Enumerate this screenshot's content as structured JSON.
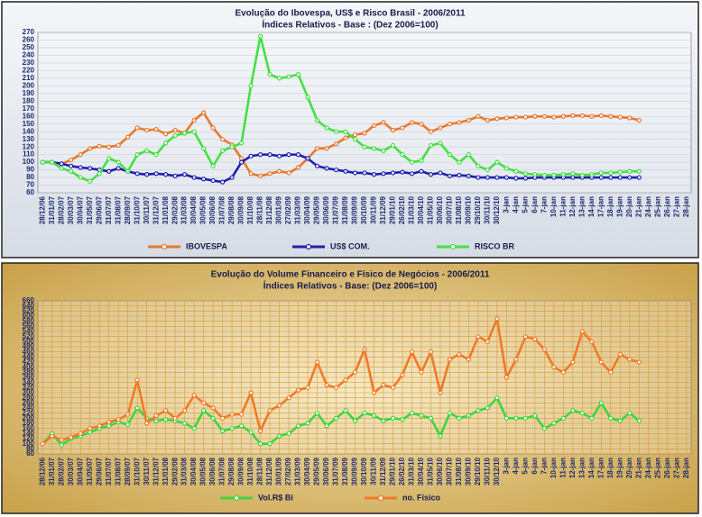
{
  "chart_data": [
    {
      "type": "line",
      "title": "Evolução  do Ibovespa, US$ e  Risco Brasil  -  2006/2011",
      "subtitle": "Índices Relativos - Base : (Dez 2006=100)",
      "categories": [
        "28/12/06",
        "31/01/07",
        "28/02/07",
        "30/03/07",
        "30/04/07",
        "31/05/07",
        "29/06/07",
        "31/07/07",
        "31/08/07",
        "28/09/07",
        "31/10/07",
        "30/11/07",
        "31/12/07",
        "31/01/08",
        "29/02/08",
        "31/03/08",
        "30/04/08",
        "30/05/08",
        "30/06/08",
        "31/07/08",
        "29/08/08",
        "30/09/08",
        "31/10/08",
        "28/11/08",
        "31/12/08",
        "30/01/09",
        "27/02/09",
        "31/03/09",
        "30/04/09",
        "29/05/09",
        "30/06/09",
        "31/07/09",
        "31/08/09",
        "30/09/09",
        "30/10/09",
        "30/11/09",
        "31/12/09",
        "29/01/10",
        "26/02/10",
        "31/03/10",
        "30/04/10",
        "31/05/10",
        "30/06/10",
        "30/07/10",
        "31/08/10",
        "30/09/10",
        "29/10/10",
        "30/11/10",
        "30/12/10",
        "3-jan",
        "4-jan",
        "5-jan",
        "6-jan",
        "7-jan",
        "10-jan",
        "11-jan",
        "12-jan",
        "13-jan",
        "14-jan",
        "17-jan",
        "18-jan",
        "19-jan",
        "20-jan",
        "21-jan",
        "24-jan",
        "25-jan",
        "26-jan",
        "27-jan",
        "28-jan"
      ],
      "series": [
        {
          "name": "IBOVESPA",
          "color": "#e8782e",
          "values": [
            100,
            100,
            98,
            103,
            110,
            118,
            121,
            120,
            122,
            133,
            145,
            142,
            143,
            137,
            142,
            138,
            155,
            165,
            145,
            130,
            123,
            105,
            85,
            82,
            85,
            88,
            86,
            93,
            105,
            118,
            118,
            124,
            132,
            136,
            138,
            148,
            152,
            142,
            145,
            152,
            150,
            140,
            145,
            150,
            152,
            155,
            160,
            155,
            157,
            158,
            159,
            159,
            160,
            160,
            159,
            160,
            161,
            161,
            160,
            161,
            160,
            159,
            158,
            155,
            null,
            null,
            null,
            null,
            null
          ]
        },
        {
          "name": "US$ COM.",
          "color": "#1f1fb0",
          "values": [
            100,
            100,
            98,
            95,
            93,
            92,
            90,
            88,
            92,
            88,
            85,
            84,
            85,
            84,
            82,
            84,
            80,
            78,
            76,
            74,
            80,
            100,
            108,
            110,
            110,
            108,
            110,
            110,
            105,
            95,
            92,
            90,
            88,
            86,
            86,
            84,
            85,
            86,
            87,
            85,
            88,
            84,
            86,
            82,
            83,
            82,
            80,
            80,
            80,
            80,
            79,
            79,
            80,
            80,
            80,
            80,
            80,
            80,
            80,
            80,
            80,
            80,
            80,
            80,
            null,
            null,
            null,
            null,
            null
          ]
        },
        {
          "name": "RISCO BR",
          "color": "#44e044",
          "values": [
            100,
            100,
            92,
            88,
            80,
            75,
            85,
            105,
            100,
            88,
            110,
            115,
            110,
            125,
            135,
            138,
            140,
            118,
            95,
            115,
            120,
            125,
            200,
            265,
            215,
            210,
            212,
            215,
            185,
            155,
            145,
            140,
            140,
            130,
            120,
            118,
            115,
            122,
            110,
            100,
            102,
            122,
            125,
            110,
            100,
            110,
            95,
            90,
            100,
            92,
            88,
            85,
            84,
            83,
            83,
            84,
            85,
            83,
            84,
            86,
            86,
            87,
            88,
            88,
            null,
            null,
            null,
            null,
            null
          ]
        }
      ],
      "ylim": [
        60,
        270
      ],
      "yticks": [
        60,
        70,
        80,
        90,
        100,
        110,
        120,
        130,
        140,
        150,
        160,
        170,
        180,
        190,
        200,
        210,
        220,
        230,
        240,
        250,
        260,
        270
      ],
      "grid": true,
      "xgrid": false,
      "grid_color": "#c8d0dc",
      "legend": "bottom"
    },
    {
      "type": "line",
      "title": "Evolução  do Volume Financeiro e Físico de Negócios -  2006/2011",
      "subtitle": "Índices Relativos - Base: (Dez 2006=100)",
      "categories": [
        "28/12/06",
        "31/01/07",
        "28/02/07",
        "30/03/07",
        "30/04/07",
        "31/05/07",
        "29/06/07",
        "31/07/07",
        "31/08/07",
        "28/09/07",
        "31/10/07",
        "30/11/07",
        "31/12/07",
        "31/01/08",
        "29/02/08",
        "31/03/08",
        "30/04/08",
        "30/05/08",
        "30/06/08",
        "31/07/08",
        "29/08/08",
        "30/09/08",
        "31/10/08",
        "28/11/08",
        "31/12/08",
        "30/01/09",
        "27/02/09",
        "31/03/09",
        "30/04/09",
        "29/05/09",
        "30/06/09",
        "31/07/09",
        "31/08/09",
        "30/09/09",
        "30/10/09",
        "30/11/09",
        "31/12/09",
        "29/01/10",
        "26/02/10",
        "31/03/10",
        "30/04/10",
        "31/05/10",
        "30/06/10",
        "30/07/10",
        "31/08/10",
        "30/09/10",
        "29/10/10",
        "30/11/10",
        "30/12/10",
        "3-jan",
        "4-jan",
        "5-jan",
        "6-jan",
        "7-jan",
        "10-jan",
        "11-jan",
        "12-jan",
        "13-jan",
        "14-jan",
        "17-jan",
        "18-jan",
        "19-jan",
        "20-jan",
        "21-jan",
        "24-jan",
        "25-jan",
        "26-jan",
        "27-jan",
        "28-jan"
      ],
      "series": [
        {
          "name": "Vol.R$ Bi",
          "color": "#3ed63e",
          "values": [
            100,
            140,
            95,
            120,
            130,
            145,
            160,
            170,
            185,
            175,
            240,
            200,
            190,
            195,
            190,
            180,
            160,
            230,
            200,
            150,
            160,
            170,
            145,
            100,
            100,
            130,
            140,
            170,
            180,
            220,
            170,
            200,
            230,
            190,
            220,
            210,
            190,
            200,
            195,
            220,
            210,
            200,
            130,
            220,
            200,
            210,
            230,
            240,
            280,
            200,
            200,
            200,
            210,
            160,
            180,
            200,
            230,
            220,
            200,
            260,
            200,
            190,
            220,
            190,
            null,
            null,
            null,
            null,
            null
          ]
        },
        {
          "name": "no. Físico",
          "color": "#f07a28",
          "values": [
            100,
            130,
            115,
            125,
            140,
            160,
            170,
            185,
            195,
            215,
            350,
            180,
            210,
            230,
            200,
            230,
            290,
            260,
            240,
            200,
            215,
            215,
            300,
            150,
            230,
            250,
            280,
            310,
            320,
            420,
            330,
            320,
            350,
            380,
            470,
            300,
            330,
            320,
            370,
            460,
            380,
            460,
            300,
            430,
            450,
            430,
            520,
            500,
            590,
            360,
            430,
            520,
            510,
            470,
            400,
            380,
            420,
            540,
            500,
            420,
            380,
            450,
            430,
            420,
            null,
            null,
            null,
            null,
            null
          ]
        }
      ],
      "ylim": [
        60,
        660
      ],
      "yticks": [
        60,
        80,
        100,
        120,
        140,
        160,
        180,
        200,
        220,
        240,
        260,
        280,
        300,
        320,
        340,
        360,
        380,
        400,
        420,
        440,
        460,
        480,
        500,
        520,
        540,
        560,
        580,
        600,
        620,
        640,
        660
      ],
      "grid": true,
      "xgrid": true,
      "grid_color": "#d89a3a",
      "legend": "bottom"
    }
  ]
}
